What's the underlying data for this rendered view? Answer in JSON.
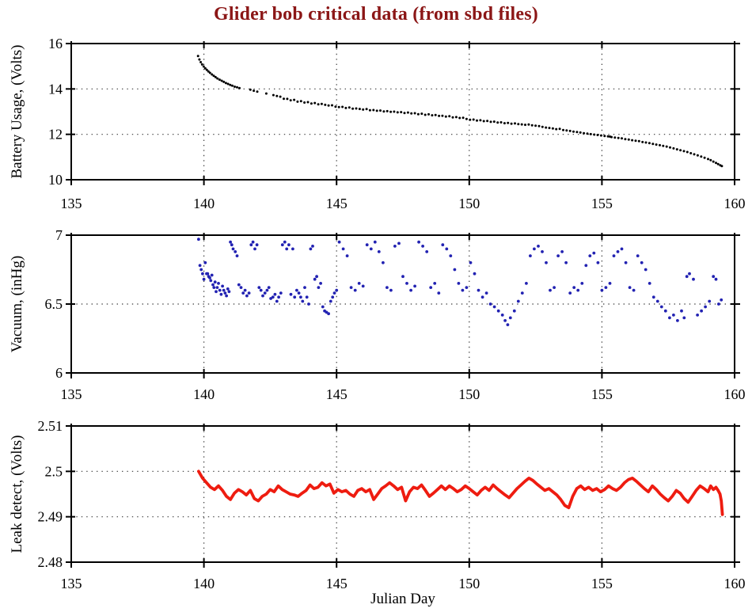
{
  "title": {
    "text": "Glider bob critical data (from sbd files)",
    "color": "#8b1616"
  },
  "axes_style": {
    "frame_color": "#000000",
    "grid_color": "#3a3a3a",
    "tick_label_color": "#000000"
  },
  "chart_data": [
    {
      "name": "battery",
      "type": "scatter",
      "ylabel": "Battery Usage, (Volts)",
      "xlabel": "",
      "xlim": [
        135,
        160
      ],
      "ylim": [
        10,
        16
      ],
      "xticks": [
        135,
        140,
        145,
        150,
        155,
        160
      ],
      "yticks": [
        16,
        14,
        12,
        10
      ],
      "grid_x": [
        140,
        145,
        150,
        155
      ],
      "grid_y": [
        14,
        12
      ],
      "color": "#000000",
      "marker_radius": 1.5,
      "points": [
        139.78,
        15.45,
        139.83,
        15.3,
        139.88,
        15.18,
        139.93,
        15.08,
        139.99,
        14.99,
        140.05,
        14.91,
        140.11,
        14.84,
        140.17,
        14.77,
        140.23,
        14.71,
        140.3,
        14.64,
        140.37,
        14.58,
        140.44,
        14.52,
        140.51,
        14.46,
        140.59,
        14.41,
        140.67,
        14.36,
        140.75,
        14.31,
        140.83,
        14.26,
        140.91,
        14.22,
        140.99,
        14.18,
        141.07,
        14.14,
        141.16,
        14.1,
        141.25,
        14.07,
        141.34,
        14.04,
        141.75,
        13.97,
        141.88,
        13.92,
        142.01,
        13.88,
        142.35,
        13.8,
        142.62,
        13.73,
        142.75,
        13.69,
        142.88,
        13.66,
        143.01,
        13.57,
        143.14,
        13.56,
        143.27,
        13.5,
        143.4,
        13.52,
        143.53,
        13.44,
        143.66,
        13.46,
        143.79,
        13.4,
        143.92,
        13.42,
        144.05,
        13.36,
        144.18,
        13.38,
        144.31,
        13.32,
        144.44,
        13.34,
        144.57,
        13.3,
        144.7,
        13.27,
        144.83,
        13.28,
        144.96,
        13.22,
        145.09,
        13.2,
        145.22,
        13.21,
        145.35,
        13.16,
        145.48,
        13.18,
        145.61,
        13.13,
        145.74,
        13.14,
        145.87,
        13.12,
        146,
        13.09,
        146.13,
        13.11,
        146.26,
        13.06,
        146.39,
        13.07,
        146.52,
        13.04,
        146.65,
        13.05,
        146.78,
        13.01,
        146.91,
        13.02,
        147.04,
        12.99,
        147.17,
        13,
        147.3,
        12.97,
        147.43,
        12.98,
        147.56,
        12.94,
        147.69,
        12.96,
        147.82,
        12.92,
        147.95,
        12.93,
        148.08,
        12.89,
        148.21,
        12.91,
        148.34,
        12.86,
        148.47,
        12.88,
        148.6,
        12.84,
        148.73,
        12.85,
        148.86,
        12.81,
        148.99,
        12.82,
        149.12,
        12.78,
        149.25,
        12.8,
        149.38,
        12.75,
        149.51,
        12.76,
        149.64,
        12.72,
        149.77,
        12.73,
        149.9,
        12.68,
        150.03,
        12.64,
        150.16,
        12.65,
        150.29,
        12.61,
        150.42,
        12.62,
        150.55,
        12.58,
        150.68,
        12.59,
        150.81,
        12.55,
        150.94,
        12.56,
        151.07,
        12.52,
        151.2,
        12.53,
        151.33,
        12.49,
        151.46,
        12.5,
        151.59,
        12.47,
        151.72,
        12.48,
        151.85,
        12.45,
        151.98,
        12.44,
        152.11,
        12.42,
        152.24,
        12.43,
        152.37,
        12.4,
        152.5,
        12.38,
        152.63,
        12.36,
        152.76,
        12.33,
        152.89,
        12.3,
        153.02,
        12.28,
        153.15,
        12.26,
        153.28,
        12.23,
        153.41,
        12.24,
        153.54,
        12.19,
        153.67,
        12.17,
        153.8,
        12.15,
        153.93,
        12.12,
        154.06,
        12.1,
        154.19,
        12.08,
        154.32,
        12.05,
        154.45,
        12.03,
        154.58,
        12.01,
        154.71,
        11.99,
        154.84,
        11.97,
        154.97,
        11.95,
        155.1,
        11.93,
        155.23,
        11.91,
        155.3,
        11.9,
        155.36,
        11.88,
        155.49,
        11.86,
        155.62,
        11.84,
        155.75,
        11.82,
        155.88,
        11.79,
        156.01,
        11.77,
        156.14,
        11.74,
        156.27,
        11.72,
        156.4,
        11.7,
        156.53,
        11.66,
        156.66,
        11.64,
        156.79,
        11.61,
        156.92,
        11.58,
        157.05,
        11.55,
        157.18,
        11.52,
        157.31,
        11.49,
        157.44,
        11.46,
        157.57,
        11.42,
        157.7,
        11.38,
        157.83,
        11.34,
        157.96,
        11.3,
        158.09,
        11.26,
        158.22,
        11.22,
        158.35,
        11.17,
        158.48,
        11.12,
        158.61,
        11.07,
        158.74,
        11.02,
        158.87,
        10.97,
        159,
        10.91,
        159.1,
        10.86,
        159.2,
        10.8,
        159.3,
        10.74,
        159.38,
        10.69,
        159.46,
        10.64,
        159.52,
        10.6
      ]
    },
    {
      "name": "vacuum",
      "type": "scatter",
      "ylabel": "Vacuum, (inHg)",
      "xlabel": "",
      "xlim": [
        135,
        160
      ],
      "ylim": [
        6,
        7
      ],
      "xticks": [
        135,
        140,
        145,
        150,
        155,
        160
      ],
      "yticks": [
        7,
        6.5,
        6
      ],
      "grid_x": [
        140,
        145,
        150,
        155
      ],
      "grid_y": [
        6.5
      ],
      "color": "#2222b2",
      "marker_radius": 1.9,
      "points": [
        139.8,
        6.97,
        139.85,
        6.78,
        139.9,
        6.75,
        139.95,
        6.72,
        140,
        6.68,
        140.05,
        6.8,
        140.1,
        6.72,
        140.18,
        6.7,
        140.26,
        6.67,
        140.34,
        6.64,
        140.42,
        6.66,
        140.5,
        6.62,
        140.6,
        6.6,
        140.7,
        6.63,
        140.8,
        6.58,
        140.9,
        6.61,
        141,
        6.95,
        141.1,
        6.9,
        141.25,
        6.85,
        141.4,
        6.62,
        141.55,
        6.6,
        141.7,
        6.58,
        141.85,
        6.95,
        142,
        6.93,
        142.15,
        6.6,
        142.3,
        6.58,
        142.45,
        6.62,
        142.6,
        6.55,
        142.75,
        6.52,
        142.9,
        6.58,
        143.05,
        6.95,
        143.2,
        6.93,
        143.35,
        6.9,
        143.5,
        6.6,
        143.65,
        6.55,
        143.8,
        6.62,
        143.95,
        6.5,
        144.1,
        6.92,
        144.25,
        6.7,
        144.4,
        6.65,
        144.55,
        6.45,
        144.7,
        6.43,
        144.85,
        6.55,
        145,
        6.6,
        145.1,
        6.95,
        145.25,
        6.9,
        145.4,
        6.85,
        145.55,
        6.62,
        145.7,
        6.6,
        145.85,
        6.65,
        146,
        6.63,
        146.15,
        6.93,
        146.3,
        6.9,
        146.45,
        6.95,
        146.6,
        6.88,
        146.75,
        6.8,
        146.9,
        6.62,
        147.05,
        6.6,
        147.2,
        6.92,
        147.35,
        6.94,
        147.5,
        6.7,
        147.65,
        6.65,
        147.8,
        6.6,
        147.95,
        6.63,
        148.1,
        6.95,
        148.25,
        6.92,
        148.4,
        6.88,
        148.55,
        6.62,
        148.7,
        6.65,
        148.85,
        6.58,
        149,
        6.93,
        149.15,
        6.9,
        149.3,
        6.85,
        149.45,
        6.75,
        149.6,
        6.65,
        149.75,
        6.6,
        149.9,
        6.62,
        150.05,
        6.8,
        150.2,
        6.72,
        150.35,
        6.6,
        150.5,
        6.55,
        150.65,
        6.58,
        150.8,
        6.5,
        150.95,
        6.48,
        151.1,
        6.45,
        151.25,
        6.42,
        151.35,
        6.38,
        151.45,
        6.35,
        151.55,
        6.4,
        151.7,
        6.45,
        151.85,
        6.52,
        152,
        6.58,
        152.15,
        6.65,
        152.3,
        6.85,
        152.45,
        6.9,
        152.6,
        6.92,
        152.75,
        6.88,
        152.9,
        6.8,
        153.05,
        6.6,
        153.2,
        6.62,
        153.35,
        6.85,
        153.5,
        6.88,
        153.65,
        6.8,
        153.8,
        6.58,
        153.95,
        6.62,
        154.1,
        6.6,
        154.25,
        6.65,
        154.4,
        6.78,
        154.55,
        6.85,
        154.7,
        6.87,
        154.85,
        6.8,
        155,
        6.6,
        155.15,
        6.62,
        155.3,
        6.65,
        155.45,
        6.85,
        155.6,
        6.88,
        155.75,
        6.9,
        155.9,
        6.8,
        156.05,
        6.62,
        156.2,
        6.6,
        156.35,
        6.85,
        156.5,
        6.8,
        156.65,
        6.75,
        156.8,
        6.65,
        156.95,
        6.55,
        157.1,
        6.52,
        157.25,
        6.48,
        157.4,
        6.45,
        157.55,
        6.4,
        157.7,
        6.42,
        157.85,
        6.38,
        158,
        6.45,
        158.1,
        6.4,
        158.2,
        6.7,
        158.3,
        6.72,
        158.45,
        6.68,
        158.6,
        6.42,
        158.75,
        6.45,
        158.9,
        6.48,
        159.05,
        6.52,
        159.2,
        6.7,
        159.3,
        6.68,
        159.4,
        6.5,
        159.5,
        6.53,
        140.14,
        6.72,
        140.22,
        6.69,
        140.3,
        6.71,
        140.38,
        6.62,
        140.46,
        6.59,
        140.55,
        6.65,
        140.65,
        6.57,
        140.75,
        6.6,
        140.85,
        6.56,
        140.95,
        6.59,
        141.05,
        6.93,
        141.18,
        6.88,
        141.32,
        6.64,
        141.48,
        6.58,
        141.62,
        6.56,
        141.78,
        6.93,
        141.92,
        6.9,
        142.08,
        6.62,
        142.22,
        6.56,
        142.38,
        6.6,
        142.52,
        6.54,
        142.68,
        6.57,
        142.82,
        6.55,
        142.96,
        6.93,
        143.12,
        6.9,
        143.28,
        6.57,
        143.42,
        6.55,
        143.58,
        6.58,
        143.72,
        6.52,
        143.88,
        6.55,
        144.02,
        6.9,
        144.18,
        6.68,
        144.32,
        6.62,
        144.48,
        6.48,
        144.62,
        6.44,
        144.78,
        6.52,
        144.92,
        6.58
      ]
    },
    {
      "name": "leak",
      "type": "line",
      "ylabel": "Leak detect, (Volts)",
      "xlabel": "Julian Day",
      "xlim": [
        135,
        160
      ],
      "ylim": [
        2.48,
        2.51
      ],
      "xticks": [
        135,
        140,
        145,
        150,
        155,
        160
      ],
      "yticks": [
        2.51,
        2.5,
        2.49,
        2.48
      ],
      "grid_x": [
        140,
        145,
        150,
        155
      ],
      "grid_y": [
        2.5,
        2.49
      ],
      "color": "#ee1c10",
      "line_width": 3.8,
      "points": [
        139.8,
        2.5,
        139.95,
        2.4985,
        140.1,
        2.4975,
        140.25,
        2.4965,
        140.4,
        2.496,
        140.55,
        2.4968,
        140.7,
        2.4958,
        140.85,
        2.4945,
        141,
        2.4938,
        141.15,
        2.4952,
        141.3,
        2.496,
        141.45,
        2.4955,
        141.6,
        2.4948,
        141.75,
        2.4958,
        141.9,
        2.494,
        142.05,
        2.4935,
        142.2,
        2.4945,
        142.35,
        2.495,
        142.5,
        2.496,
        142.65,
        2.4955,
        142.8,
        2.4968,
        142.95,
        2.496,
        143.1,
        2.4955,
        143.25,
        2.495,
        143.4,
        2.4948,
        143.55,
        2.4945,
        143.7,
        2.4952,
        143.85,
        2.4958,
        144,
        2.497,
        144.15,
        2.4962,
        144.3,
        2.4965,
        144.45,
        2.4975,
        144.6,
        2.4968,
        144.75,
        2.4972,
        144.9,
        2.4952,
        145.05,
        2.496,
        145.2,
        2.4955,
        145.35,
        2.4958,
        145.5,
        2.495,
        145.65,
        2.4945,
        145.8,
        2.4958,
        145.95,
        2.4962,
        146.1,
        2.4955,
        146.25,
        2.496,
        146.4,
        2.4938,
        146.55,
        2.495,
        146.7,
        2.4962,
        146.85,
        2.4968,
        147,
        2.4975,
        147.15,
        2.4968,
        147.3,
        2.496,
        147.45,
        2.4965,
        147.6,
        2.4935,
        147.75,
        2.4955,
        147.9,
        2.4965,
        148.05,
        2.4962,
        148.2,
        2.497,
        148.35,
        2.4958,
        148.5,
        2.4945,
        148.65,
        2.4952,
        148.8,
        2.496,
        148.95,
        2.4968,
        149.1,
        2.496,
        149.25,
        2.4968,
        149.4,
        2.4962,
        149.55,
        2.4955,
        149.7,
        2.496,
        149.85,
        2.4968,
        150,
        2.4962,
        150.15,
        2.4955,
        150.3,
        2.4948,
        150.45,
        2.4958,
        150.6,
        2.4965,
        150.75,
        2.4958,
        150.9,
        2.497,
        151.05,
        2.4962,
        151.2,
        2.4955,
        151.35,
        2.4948,
        151.5,
        2.4942,
        151.65,
        2.4952,
        151.8,
        2.4962,
        151.95,
        2.497,
        152.1,
        2.4978,
        152.25,
        2.4985,
        152.4,
        2.498,
        152.55,
        2.4972,
        152.7,
        2.4965,
        152.85,
        2.4958,
        153,
        2.4962,
        153.15,
        2.4955,
        153.3,
        2.4948,
        153.45,
        2.4938,
        153.6,
        2.4925,
        153.75,
        2.492,
        153.9,
        2.4945,
        154.05,
        2.4962,
        154.2,
        2.4968,
        154.35,
        2.496,
        154.5,
        2.4965,
        154.65,
        2.4958,
        154.8,
        2.4962,
        154.95,
        2.4955,
        155.1,
        2.496,
        155.25,
        2.4968,
        155.4,
        2.4962,
        155.55,
        2.4958,
        155.7,
        2.4965,
        155.85,
        2.4975,
        156,
        2.4982,
        156.15,
        2.4985,
        156.3,
        2.4978,
        156.45,
        2.497,
        156.6,
        2.4962,
        156.75,
        2.4955,
        156.9,
        2.4968,
        157.05,
        2.496,
        157.2,
        2.495,
        157.35,
        2.4942,
        157.5,
        2.4935,
        157.65,
        2.4945,
        157.8,
        2.4958,
        157.95,
        2.4952,
        158.1,
        2.494,
        158.25,
        2.4932,
        158.4,
        2.4945,
        158.55,
        2.4958,
        158.7,
        2.4968,
        158.85,
        2.4962,
        159,
        2.4955,
        159.1,
        2.4968,
        159.2,
        2.496,
        159.3,
        2.4965,
        159.38,
        2.4958,
        159.45,
        2.495,
        159.5,
        2.4935,
        159.52,
        2.492,
        159.54,
        2.4905
      ]
    }
  ]
}
